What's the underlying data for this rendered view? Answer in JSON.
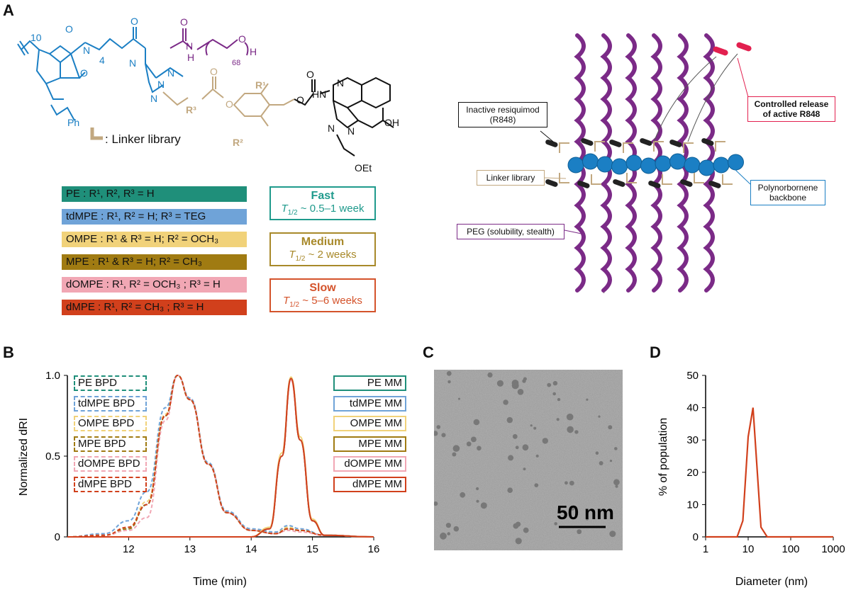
{
  "panels": {
    "a": "A",
    "b": "B",
    "c": "C",
    "d": "D"
  },
  "chem": {
    "n10": "10",
    "o1": "O",
    "o2": "O",
    "n_imide": "N",
    "n4": "4",
    "o3": "O",
    "n_amine": "N",
    "o4": "O",
    "nh": "N",
    "h1": "H",
    "o5": "O",
    "h2": "H",
    "n68": "68",
    "ph": "Ph",
    "triazole_n1": "N",
    "triazole_n2": "N",
    "triazole_n3": "N",
    "r3": "R³",
    "r1": "R¹",
    "r2": "R²",
    "o6": "O",
    "o7": "O",
    "o8": "O",
    "o9": "O",
    "hn": "HN",
    "n_q1": "N",
    "n_q2": "N",
    "n_q3": "N",
    "oh": "OH",
    "oet": "OEt",
    "linker_label": ": Linker library"
  },
  "linkers": [
    {
      "label": "PE : R¹, R², R³ = H",
      "color": "#1f8f7a"
    },
    {
      "label": "tdMPE : R¹, R² = H; R³ = TEG",
      "color": "#6fa3d8"
    },
    {
      "label": "OMPE : R¹ & R³ = H; R² = OCH₃",
      "color": "#f1d27a"
    },
    {
      "label": "MPE : R¹ & R³ = H; R² = CH₃",
      "color": "#a07b12"
    },
    {
      "label": "dOMPE : R¹, R² = OCH₃ ; R³ = H",
      "color": "#f1a7b4"
    },
    {
      "label": "dMPE : R¹, R² = CH₃ ; R³ = H",
      "color": "#d1401c"
    }
  ],
  "rates": [
    {
      "title": "Fast",
      "t": "T",
      "sub": "1/2",
      "value": " ~ 0.5–1 week",
      "color": "#1f9a8c"
    },
    {
      "title": "Medium",
      "t": "T",
      "sub": "1/2",
      "value": " ~ 2 weeks",
      "color": "#a8892a"
    },
    {
      "title": "Slow",
      "t": "T",
      "sub": "1/2",
      "value": " ~ 5–6 weeks",
      "color": "#d4532b"
    }
  ],
  "schematic": {
    "inactive": "Inactive resiquimod\n(R848)",
    "linker": "Linker library",
    "peg": "PEG (solubility, stealth)",
    "release": "Controlled release\nof active R848",
    "backbone": "Polynorbornene\nbackbone",
    "colors": {
      "peg": "#7b2a87",
      "bead": "#1b7fc4",
      "release": "#e2204f",
      "linker": "#c2a880"
    }
  },
  "chart_data": [
    {
      "type": "line",
      "panel": "B",
      "xlabel": "Time (min)",
      "ylabel": "Normalized dRI",
      "xlim": [
        11,
        16
      ],
      "ylim": [
        0,
        1
      ],
      "xticks": [
        12,
        13,
        14,
        15,
        16
      ],
      "yticks": [
        0,
        0.5,
        1.0
      ],
      "ytick_labels": [
        "0",
        "0.5",
        "1.0"
      ],
      "series": [
        {
          "name": "PE BPD",
          "color": "#1f8f7a",
          "dash": true,
          "x": [
            11,
            11.6,
            12.0,
            12.3,
            12.6,
            12.8,
            13.0,
            13.3,
            13.6,
            14.0,
            14.4,
            14.6,
            14.8,
            15.2,
            16
          ],
          "y": [
            0,
            0.01,
            0.05,
            0.2,
            0.75,
            1.0,
            0.85,
            0.45,
            0.15,
            0.04,
            0.02,
            0.05,
            0.04,
            0.01,
            0
          ]
        },
        {
          "name": "tdMPE BPD",
          "color": "#6fa3d8",
          "dash": true,
          "x": [
            11,
            11.6,
            12.0,
            12.3,
            12.6,
            12.8,
            13.0,
            13.3,
            13.6,
            14.0,
            14.4,
            14.6,
            14.8,
            15.2,
            16
          ],
          "y": [
            0,
            0.02,
            0.1,
            0.28,
            0.8,
            1.0,
            0.86,
            0.46,
            0.16,
            0.05,
            0.03,
            0.07,
            0.05,
            0.01,
            0
          ]
        },
        {
          "name": "OMPE BPD",
          "color": "#f1d27a",
          "dash": true,
          "x": [
            11,
            11.6,
            12.0,
            12.3,
            12.6,
            12.8,
            13.0,
            13.3,
            13.6,
            14.0,
            14.4,
            14.6,
            14.8,
            15.2,
            16
          ],
          "y": [
            0,
            0.01,
            0.06,
            0.22,
            0.76,
            1.0,
            0.85,
            0.45,
            0.15,
            0.04,
            0.02,
            0.06,
            0.04,
            0.01,
            0
          ]
        },
        {
          "name": "MPE BPD",
          "color": "#a07b12",
          "dash": true,
          "x": [
            11,
            11.6,
            12.0,
            12.3,
            12.6,
            12.8,
            13.0,
            13.3,
            13.6,
            14.0,
            14.4,
            14.6,
            14.8,
            15.2,
            16
          ],
          "y": [
            0,
            0.01,
            0.05,
            0.2,
            0.75,
            1.0,
            0.85,
            0.45,
            0.15,
            0.04,
            0.02,
            0.05,
            0.04,
            0.01,
            0
          ]
        },
        {
          "name": "dOMPE BPD",
          "color": "#f1a7b4",
          "dash": true,
          "x": [
            11,
            11.6,
            12.0,
            12.3,
            12.6,
            12.8,
            13.0,
            13.3,
            13.6,
            14.0,
            14.4,
            14.6,
            14.8,
            15.2,
            16
          ],
          "y": [
            0,
            0.01,
            0.04,
            0.12,
            0.72,
            1.0,
            0.85,
            0.45,
            0.15,
            0.04,
            0.02,
            0.04,
            0.03,
            0.01,
            0
          ]
        },
        {
          "name": "dMPE BPD",
          "color": "#d1401c",
          "dash": true,
          "x": [
            11,
            11.6,
            12.0,
            12.3,
            12.6,
            12.8,
            13.0,
            13.3,
            13.6,
            14.0,
            14.4,
            14.6,
            14.8,
            15.2,
            16
          ],
          "y": [
            0,
            0.01,
            0.06,
            0.2,
            0.75,
            1.0,
            0.85,
            0.45,
            0.15,
            0.04,
            0.02,
            0.05,
            0.04,
            0.01,
            0
          ]
        },
        {
          "name": "PE MM",
          "color": "#1f8f7a",
          "dash": false,
          "x": [
            11,
            12,
            13,
            14,
            14.3,
            14.5,
            14.65,
            14.8,
            15.0,
            15.2,
            16
          ],
          "y": [
            0,
            0,
            0,
            0,
            0.05,
            0.5,
            0.98,
            0.6,
            0.1,
            0.01,
            0
          ]
        },
        {
          "name": "tdMPE MM",
          "color": "#6fa3d8",
          "dash": false,
          "x": [
            11,
            12,
            13,
            14,
            14.3,
            14.5,
            14.65,
            14.8,
            15.0,
            15.2,
            16
          ],
          "y": [
            0,
            0,
            0,
            0,
            0.05,
            0.5,
            0.98,
            0.6,
            0.1,
            0.01,
            0
          ]
        },
        {
          "name": "OMPE MM",
          "color": "#f1d27a",
          "dash": false,
          "x": [
            11,
            12,
            13,
            14,
            14.3,
            14.5,
            14.65,
            14.8,
            15.0,
            15.2,
            16
          ],
          "y": [
            0,
            0,
            0,
            0,
            0.06,
            0.52,
            0.99,
            0.62,
            0.11,
            0.01,
            0
          ]
        },
        {
          "name": "MPE MM",
          "color": "#a07b12",
          "dash": false,
          "x": [
            11,
            12,
            13,
            14,
            14.3,
            14.5,
            14.65,
            14.8,
            15.0,
            15.2,
            16
          ],
          "y": [
            0,
            0,
            0,
            0,
            0.05,
            0.5,
            0.98,
            0.6,
            0.1,
            0.01,
            0
          ]
        },
        {
          "name": "dOMPE MM",
          "color": "#f1a7b4",
          "dash": false,
          "x": [
            11,
            12,
            13,
            14,
            14.3,
            14.5,
            14.65,
            14.8,
            15.0,
            15.2,
            16
          ],
          "y": [
            0,
            0,
            0,
            0,
            0.05,
            0.5,
            0.97,
            0.6,
            0.1,
            0.01,
            0
          ]
        },
        {
          "name": "dMPE MM",
          "color": "#d1401c",
          "dash": false,
          "x": [
            11,
            12,
            13,
            14,
            14.3,
            14.5,
            14.65,
            14.8,
            15.0,
            15.2,
            16
          ],
          "y": [
            0,
            0,
            0,
            0,
            0.05,
            0.5,
            0.98,
            0.6,
            0.1,
            0.01,
            0
          ]
        }
      ]
    },
    {
      "type": "line",
      "panel": "D",
      "xlabel": "Diameter (nm)",
      "ylabel": "% of population",
      "xscale": "log",
      "xlim": [
        1,
        1000
      ],
      "ylim": [
        0,
        50
      ],
      "xticks": [
        1,
        10,
        100,
        1000
      ],
      "yticks": [
        0,
        10,
        20,
        30,
        40,
        50
      ],
      "series": [
        {
          "color": "#d1401c",
          "x": [
            1,
            5.5,
            7.5,
            10,
            13,
            20,
            28,
            1000
          ],
          "y": [
            0,
            0,
            5,
            31,
            40,
            3,
            0,
            0
          ]
        }
      ]
    }
  ],
  "tem": {
    "scale_label": "50 nm"
  }
}
